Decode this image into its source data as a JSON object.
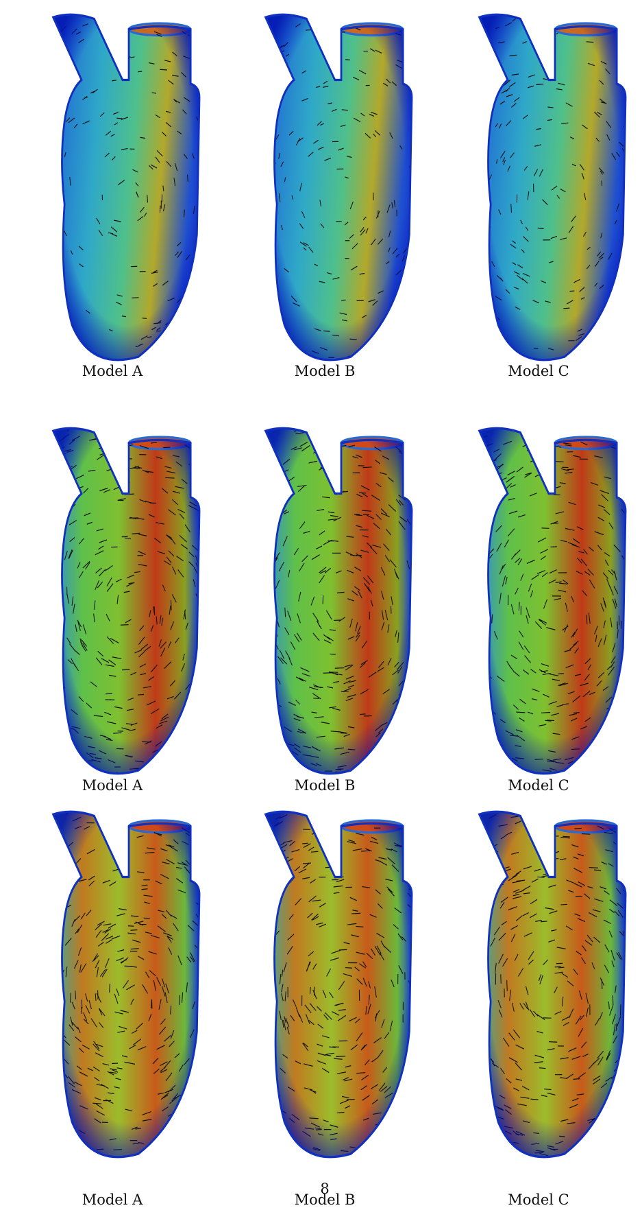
{
  "figure": {
    "rows": [
      {
        "panels": [
          {
            "caption": "Model A"
          },
          {
            "caption": "Model B"
          },
          {
            "caption": "Model C"
          }
        ]
      },
      {
        "panels": [
          {
            "caption": "Model A"
          },
          {
            "caption": "Model B"
          },
          {
            "caption": "Model C"
          }
        ]
      },
      {
        "panels": [
          {
            "caption": "Model A"
          },
          {
            "caption": "Model B"
          },
          {
            "caption": "Model C"
          }
        ]
      }
    ]
  },
  "page_number": "8"
}
